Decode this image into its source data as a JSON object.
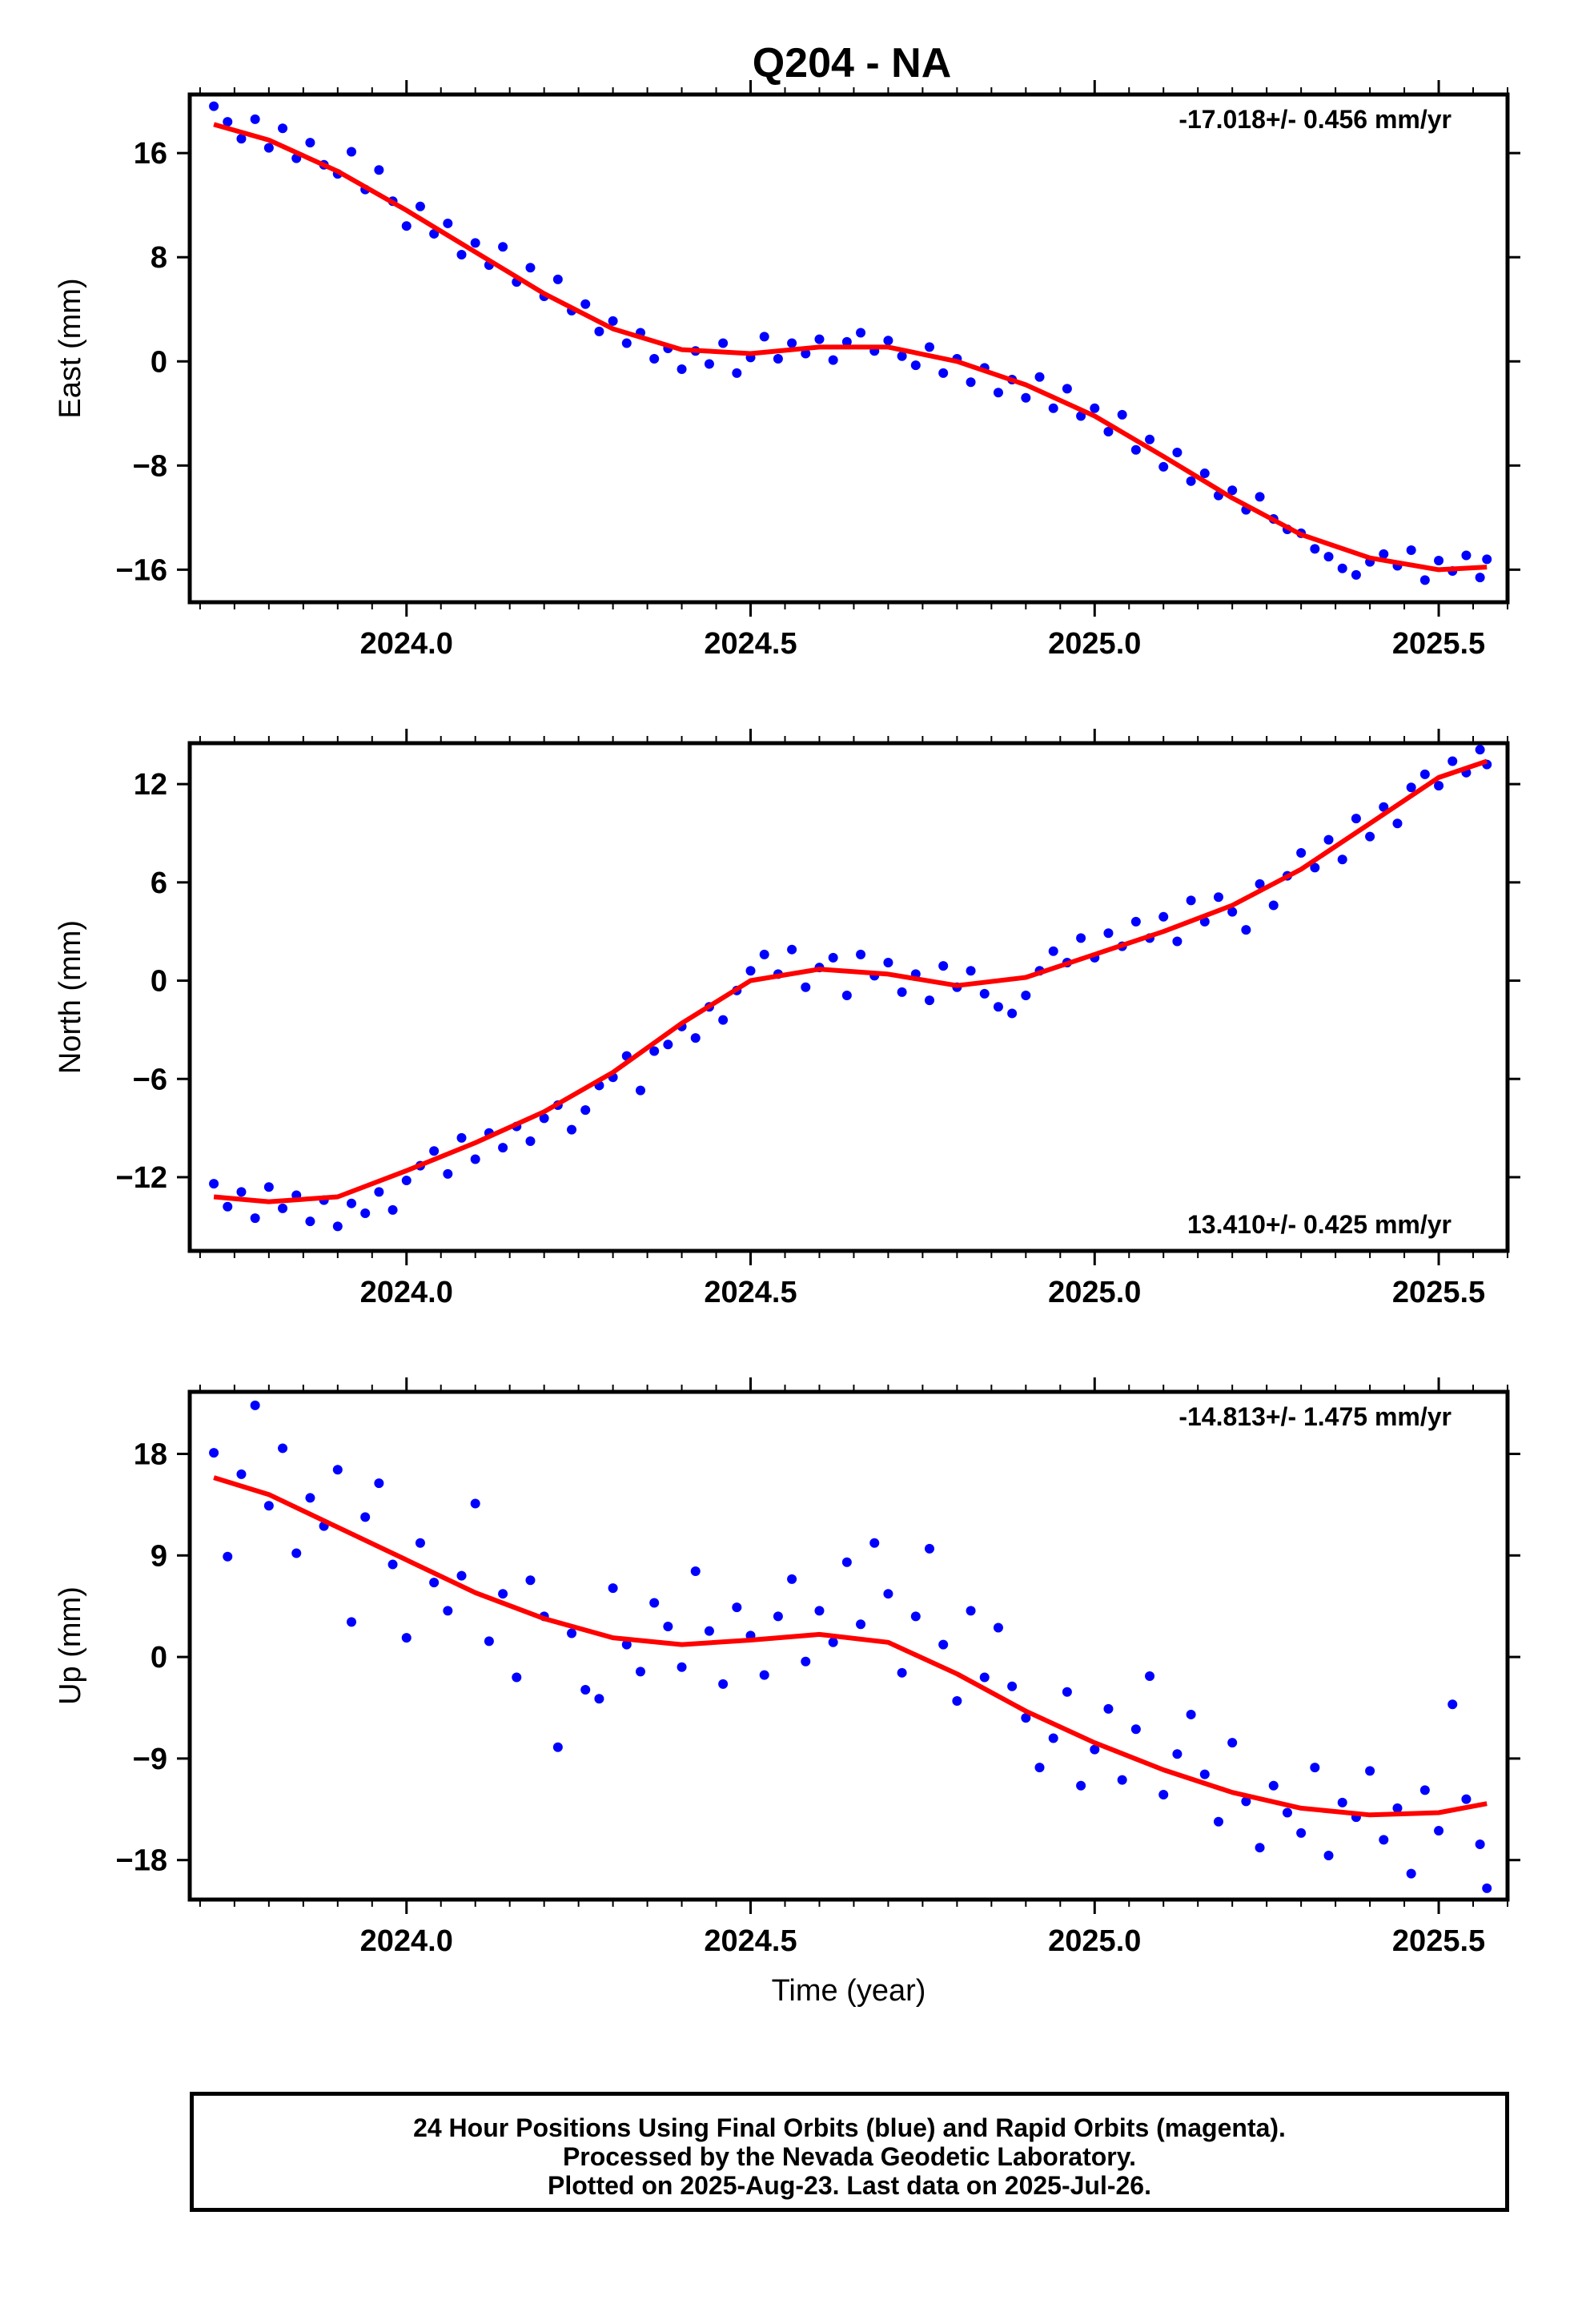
{
  "title": "Q204 - NA",
  "colors": {
    "data_points": "#0000ff",
    "fit_line": "#ff0000",
    "frame": "#000000"
  },
  "footer": {
    "line1": "24 Hour Positions Using Final Orbits (blue) and Rapid Orbits (magenta).",
    "line2": "Processed by the Nevada Geodetic Laboratory.",
    "line3": "Plotted on 2025-Aug-23. Last data on 2025-Jul-26."
  },
  "chart_data": [
    {
      "type": "scatter",
      "component": "east",
      "ylabel": "East (mm)",
      "xlabel": "",
      "rate_label": "-17.018+/- 0.456 mm/yr",
      "rate_position": "top-right",
      "xlim": [
        2023.685,
        2025.6
      ],
      "ylim": [
        -18.5,
        20.5
      ],
      "xticks": [
        2024.0,
        2024.5,
        2025.0,
        2025.5
      ],
      "xtick_labels": [
        "2024.0",
        "2024.5",
        "2025.0",
        "2025.5"
      ],
      "yticks": [
        16,
        8,
        0,
        -8,
        -16
      ],
      "ytick_labels": [
        "16",
        "8",
        "0",
        "−8",
        "−16"
      ],
      "fit_curve": {
        "x": [
          2023.72,
          2023.8,
          2023.9,
          2024.0,
          2024.1,
          2024.2,
          2024.3,
          2024.4,
          2024.5,
          2024.6,
          2024.7,
          2024.8,
          2024.9,
          2025.0,
          2025.1,
          2025.2,
          2025.3,
          2025.4,
          2025.5,
          2025.57
        ],
        "y": [
          18.2,
          17.0,
          14.6,
          11.6,
          8.4,
          5.2,
          2.5,
          0.9,
          0.6,
          1.1,
          1.1,
          0.0,
          -1.8,
          -4.2,
          -7.3,
          -10.5,
          -13.3,
          -15.1,
          -16.0,
          -15.8
        ]
      },
      "series": [
        {
          "points": {
            "x": [
              2023.72,
              2023.74,
              2023.76,
              2023.78,
              2023.8,
              2023.82,
              2023.84,
              2023.86,
              2023.88,
              2023.9,
              2023.92,
              2023.94,
              2023.96,
              2023.98,
              2024.0,
              2024.02,
              2024.04,
              2024.06,
              2024.08,
              2024.1,
              2024.12,
              2024.14,
              2024.16,
              2024.18,
              2024.2,
              2024.22,
              2024.24,
              2024.26,
              2024.28,
              2024.3,
              2024.32,
              2024.34,
              2024.36,
              2024.38,
              2024.4,
              2024.42,
              2024.44,
              2024.46,
              2024.48,
              2024.5,
              2024.52,
              2024.54,
              2024.56,
              2024.58,
              2024.6,
              2024.62,
              2024.64,
              2024.66,
              2024.68,
              2024.7,
              2024.72,
              2024.74,
              2024.76,
              2024.78,
              2024.8,
              2024.82,
              2024.84,
              2024.86,
              2024.88,
              2024.9,
              2024.92,
              2024.94,
              2024.96,
              2024.98,
              2025.0,
              2025.02,
              2025.04,
              2025.06,
              2025.08,
              2025.1,
              2025.12,
              2025.14,
              2025.16,
              2025.18,
              2025.2,
              2025.22,
              2025.24,
              2025.26,
              2025.28,
              2025.3,
              2025.32,
              2025.34,
              2025.36,
              2025.38,
              2025.4,
              2025.42,
              2025.44,
              2025.46,
              2025.48,
              2025.5,
              2025.52,
              2025.54,
              2025.56,
              2025.57
            ],
            "y": [
              19.6,
              18.4,
              17.1,
              18.6,
              16.4,
              17.9,
              15.6,
              16.8,
              15.1,
              14.4,
              16.1,
              13.2,
              14.7,
              12.3,
              10.4,
              11.9,
              9.8,
              10.6,
              8.2,
              9.1,
              7.4,
              8.8,
              6.1,
              7.2,
              5.0,
              6.3,
              3.9,
              4.4,
              2.3,
              3.1,
              1.4,
              2.2,
              0.2,
              1.0,
              -0.6,
              0.8,
              -0.2,
              1.4,
              -0.9,
              0.3,
              1.9,
              0.2,
              1.4,
              0.6,
              1.7,
              0.1,
              1.5,
              2.2,
              0.8,
              1.6,
              0.4,
              -0.3,
              1.1,
              -0.9,
              0.2,
              -1.6,
              -0.5,
              -2.4,
              -1.4,
              -2.8,
              -1.2,
              -3.6,
              -2.1,
              -4.2,
              -3.6,
              -5.4,
              -4.1,
              -6.8,
              -6.0,
              -8.1,
              -7.0,
              -9.2,
              -8.6,
              -10.3,
              -9.9,
              -11.4,
              -10.4,
              -12.1,
              -12.9,
              -13.2,
              -14.4,
              -15.0,
              -15.9,
              -16.4,
              -15.4,
              -14.8,
              -15.7,
              -14.5,
              -16.8,
              -15.3,
              -16.1,
              -14.9,
              -16.6,
              -15.2
            ]
          }
        }
      ]
    },
    {
      "type": "scatter",
      "component": "north",
      "ylabel": "North (mm)",
      "xlabel": "",
      "rate_label": "13.410+/- 0.425 mm/yr",
      "rate_position": "bottom-right",
      "xlim": [
        2023.685,
        2025.6
      ],
      "ylim": [
        -16.5,
        14.5
      ],
      "xticks": [
        2024.0,
        2024.5,
        2025.0,
        2025.5
      ],
      "xtick_labels": [
        "2024.0",
        "2024.5",
        "2025.0",
        "2025.5"
      ],
      "yticks": [
        12,
        6,
        0,
        -6,
        -12
      ],
      "ytick_labels": [
        "12",
        "6",
        "0",
        "−6",
        "−12"
      ],
      "fit_curve": {
        "x": [
          2023.72,
          2023.8,
          2023.9,
          2024.0,
          2024.1,
          2024.2,
          2024.3,
          2024.4,
          2024.5,
          2024.6,
          2024.7,
          2024.8,
          2024.9,
          2025.0,
          2025.1,
          2025.2,
          2025.3,
          2025.4,
          2025.5,
          2025.57
        ],
        "y": [
          -13.2,
          -13.5,
          -13.2,
          -11.6,
          -9.9,
          -8.0,
          -5.6,
          -2.6,
          0.0,
          0.7,
          0.4,
          -0.3,
          0.2,
          1.6,
          3.0,
          4.6,
          6.8,
          9.6,
          12.4,
          13.4
        ]
      },
      "series": [
        {
          "points": {
            "x": [
              2023.72,
              2023.74,
              2023.76,
              2023.78,
              2023.8,
              2023.82,
              2023.84,
              2023.86,
              2023.88,
              2023.9,
              2023.92,
              2023.94,
              2023.96,
              2023.98,
              2024.0,
              2024.02,
              2024.04,
              2024.06,
              2024.08,
              2024.1,
              2024.12,
              2024.14,
              2024.16,
              2024.18,
              2024.2,
              2024.22,
              2024.24,
              2024.26,
              2024.28,
              2024.3,
              2024.32,
              2024.34,
              2024.36,
              2024.38,
              2024.4,
              2024.42,
              2024.44,
              2024.46,
              2024.48,
              2024.5,
              2024.52,
              2024.54,
              2024.56,
              2024.58,
              2024.6,
              2024.62,
              2024.64,
              2024.66,
              2024.68,
              2024.7,
              2024.72,
              2024.74,
              2024.76,
              2024.78,
              2024.8,
              2024.82,
              2024.84,
              2024.86,
              2024.88,
              2024.9,
              2024.92,
              2024.94,
              2024.96,
              2024.98,
              2025.0,
              2025.02,
              2025.04,
              2025.06,
              2025.08,
              2025.1,
              2025.12,
              2025.14,
              2025.16,
              2025.18,
              2025.2,
              2025.22,
              2025.24,
              2025.26,
              2025.28,
              2025.3,
              2025.32,
              2025.34,
              2025.36,
              2025.38,
              2025.4,
              2025.42,
              2025.44,
              2025.46,
              2025.48,
              2025.5,
              2025.52,
              2025.54,
              2025.56,
              2025.57
            ],
            "y": [
              -12.4,
              -13.8,
              -12.9,
              -14.5,
              -12.6,
              -13.9,
              -13.1,
              -14.7,
              -13.4,
              -15.0,
              -13.6,
              -14.2,
              -12.9,
              -14.0,
              -12.2,
              -11.3,
              -10.4,
              -11.8,
              -9.6,
              -10.9,
              -9.3,
              -10.2,
              -8.9,
              -9.8,
              -8.4,
              -7.6,
              -9.1,
              -7.9,
              -6.4,
              -5.9,
              -4.6,
              -6.7,
              -4.3,
              -3.9,
              -2.8,
              -3.5,
              -1.6,
              -2.4,
              -0.6,
              0.6,
              1.6,
              0.4,
              1.9,
              -0.4,
              0.8,
              1.4,
              -0.9,
              1.6,
              0.3,
              1.1,
              -0.7,
              0.4,
              -1.2,
              0.9,
              -0.4,
              0.6,
              -0.8,
              -1.6,
              -2.0,
              -0.9,
              0.6,
              1.8,
              1.1,
              2.6,
              1.4,
              2.9,
              2.1,
              3.6,
              2.6,
              3.9,
              2.4,
              4.9,
              3.6,
              5.1,
              4.2,
              3.1,
              5.9,
              4.6,
              6.4,
              7.8,
              6.9,
              8.6,
              7.4,
              9.9,
              8.8,
              10.6,
              9.6,
              11.8,
              12.6,
              11.9,
              13.4,
              12.7,
              14.1,
              13.2
            ]
          }
        }
      ]
    },
    {
      "type": "scatter",
      "component": "up",
      "ylabel": "Up (mm)",
      "xlabel": "Time (year)",
      "rate_label": "-14.813+/- 1.475 mm/yr",
      "rate_position": "top-right",
      "xlim": [
        2023.685,
        2025.6
      ],
      "ylim": [
        -21.5,
        23.5
      ],
      "xticks": [
        2024.0,
        2024.5,
        2025.0,
        2025.5
      ],
      "xtick_labels": [
        "2024.0",
        "2024.5",
        "2025.0",
        "2025.5"
      ],
      "yticks": [
        18,
        9,
        0,
        -9,
        -18
      ],
      "ytick_labels": [
        "18",
        "9",
        "0",
        "−9",
        "−18"
      ],
      "fit_curve": {
        "x": [
          2023.72,
          2023.8,
          2023.9,
          2024.0,
          2024.1,
          2024.2,
          2024.3,
          2024.4,
          2024.5,
          2024.6,
          2024.7,
          2024.8,
          2024.9,
          2025.0,
          2025.1,
          2025.2,
          2025.3,
          2025.4,
          2025.5,
          2025.57
        ],
        "y": [
          15.9,
          14.4,
          11.5,
          8.6,
          5.7,
          3.4,
          1.7,
          1.1,
          1.5,
          2.0,
          1.3,
          -1.5,
          -4.8,
          -7.6,
          -10.0,
          -12.0,
          -13.4,
          -14.0,
          -13.8,
          -13.0
        ]
      },
      "series": [
        {
          "points": {
            "x": [
              2023.72,
              2023.74,
              2023.76,
              2023.78,
              2023.8,
              2023.82,
              2023.84,
              2023.86,
              2023.88,
              2023.9,
              2023.92,
              2023.94,
              2023.96,
              2023.98,
              2024.0,
              2024.02,
              2024.04,
              2024.06,
              2024.08,
              2024.1,
              2024.12,
              2024.14,
              2024.16,
              2024.18,
              2024.2,
              2024.22,
              2024.24,
              2024.26,
              2024.28,
              2024.3,
              2024.32,
              2024.34,
              2024.36,
              2024.38,
              2024.4,
              2024.42,
              2024.44,
              2024.46,
              2024.48,
              2024.5,
              2024.52,
              2024.54,
              2024.56,
              2024.58,
              2024.6,
              2024.62,
              2024.64,
              2024.66,
              2024.68,
              2024.7,
              2024.72,
              2024.74,
              2024.76,
              2024.78,
              2024.8,
              2024.82,
              2024.84,
              2024.86,
              2024.88,
              2024.9,
              2024.92,
              2024.94,
              2024.96,
              2024.98,
              2025.0,
              2025.02,
              2025.04,
              2025.06,
              2025.08,
              2025.1,
              2025.12,
              2025.14,
              2025.16,
              2025.18,
              2025.2,
              2025.22,
              2025.24,
              2025.26,
              2025.28,
              2025.3,
              2025.32,
              2025.34,
              2025.36,
              2025.38,
              2025.4,
              2025.42,
              2025.44,
              2025.46,
              2025.48,
              2025.5,
              2025.52,
              2025.54,
              2025.56,
              2025.57
            ],
            "y": [
              18.1,
              8.9,
              16.2,
              22.3,
              13.4,
              18.5,
              9.2,
              14.1,
              11.6,
              16.6,
              3.1,
              12.4,
              15.4,
              8.2,
              1.7,
              10.1,
              6.6,
              4.1,
              7.2,
              13.6,
              1.4,
              5.6,
              -1.8,
              6.8,
              3.6,
              -8.0,
              2.1,
              -2.9,
              -3.7,
              6.1,
              1.1,
              -1.3,
              4.8,
              2.7,
              -0.9,
              7.6,
              2.3,
              -2.4,
              4.4,
              1.9,
              -1.6,
              3.6,
              6.9,
              -0.4,
              4.1,
              1.3,
              8.4,
              2.9,
              10.1,
              5.6,
              -1.4,
              3.6,
              9.6,
              1.1,
              -3.9,
              4.1,
              -1.8,
              2.6,
              -2.6,
              -5.4,
              -9.8,
              -7.2,
              -3.1,
              -11.4,
              -8.2,
              -4.6,
              -10.9,
              -6.4,
              -1.7,
              -12.2,
              -8.6,
              -5.1,
              -10.4,
              -14.6,
              -7.6,
              -12.8,
              -16.9,
              -11.4,
              -13.8,
              -15.6,
              -9.8,
              -17.6,
              -12.9,
              -14.2,
              -10.1,
              -16.2,
              -13.4,
              -19.2,
              -11.8,
              -15.4,
              -4.2,
              -12.6,
              -16.6,
              -20.5
            ]
          }
        }
      ]
    }
  ]
}
